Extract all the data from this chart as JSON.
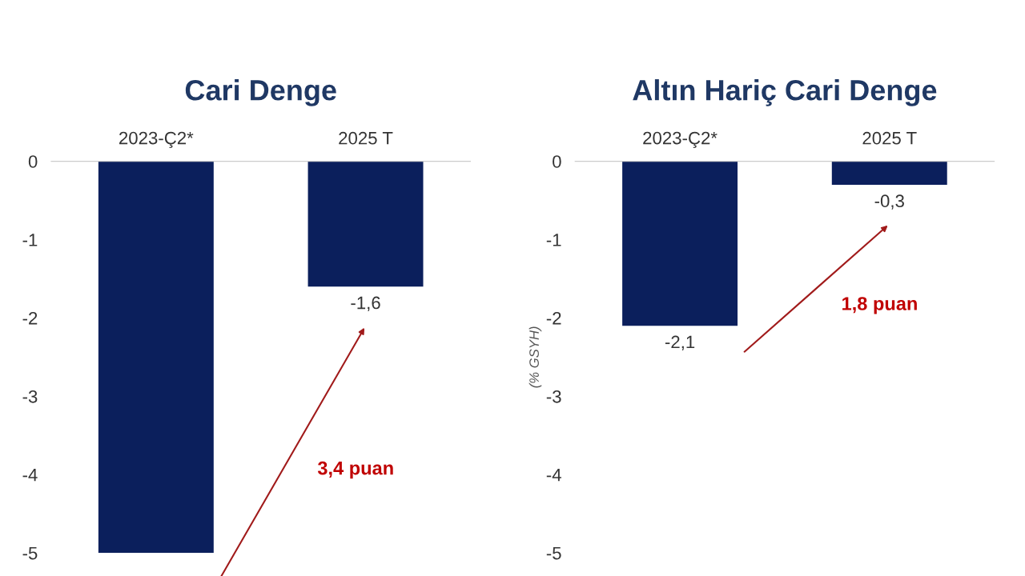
{
  "chart_data": [
    {
      "type": "bar",
      "title": "Cari Denge",
      "categories": [
        "2023-Ç2*",
        "2025 T"
      ],
      "values": [
        -5.0,
        -1.6
      ],
      "value_labels": [
        null,
        "-1,6"
      ],
      "color": "#0b1f5c",
      "ylim": [
        -5,
        0
      ],
      "yticks": [
        0,
        -1,
        -2,
        -3,
        -4,
        -5
      ],
      "annotations": [
        "3,4 puan"
      ]
    },
    {
      "type": "bar",
      "title": "Altın Hariç Cari Denge",
      "ylabel": "(% GSYH)",
      "categories": [
        "2023-Ç2*",
        "2025 T"
      ],
      "values": [
        -2.1,
        -0.3
      ],
      "value_labels": [
        "-2,1",
        "-0,3"
      ],
      "color": "#0b1f5c",
      "ylim": [
        -5,
        0
      ],
      "yticks": [
        0,
        -1,
        -2,
        -3,
        -4,
        -5
      ],
      "annotations": [
        "1,8 puan"
      ]
    }
  ]
}
